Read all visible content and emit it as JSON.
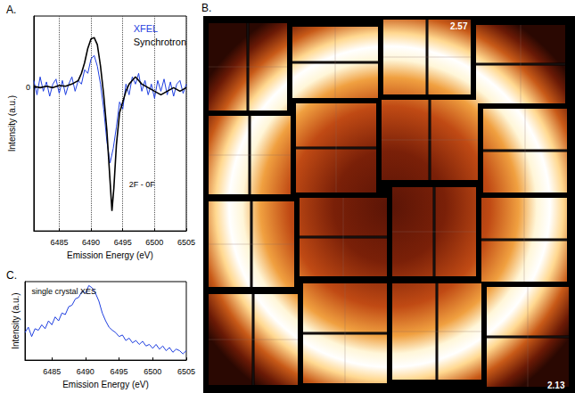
{
  "chart_data": [
    {
      "type": "line",
      "title": "A.",
      "x_label": "Emission Energy (eV)",
      "y_label": "Intensity (a.u.)",
      "xlim": [
        6481,
        6505
      ],
      "xticks": [
        6485,
        6490,
        6495,
        6500,
        6505
      ],
      "ylim": [
        -2,
        1
      ],
      "yticks": [
        0
      ],
      "grid": true,
      "legend": "upper right",
      "annotations": [
        {
          "text": "2F - 0F",
          "x": 6496,
          "y": -1.3
        }
      ],
      "series": [
        {
          "name": "XFEL",
          "color": "#1f3fe0",
          "x": [
            6481,
            6481.5,
            6482,
            6482.5,
            6483,
            6483.5,
            6484,
            6484.5,
            6485,
            6485.5,
            6486,
            6486.5,
            6487,
            6487.5,
            6488,
            6488.5,
            6489,
            6489.5,
            6490,
            6490.5,
            6491,
            6491.5,
            6492,
            6492.5,
            6493,
            6493.5,
            6494,
            6494.5,
            6495,
            6495.5,
            6496,
            6496.5,
            6497,
            6497.5,
            6498,
            6498.5,
            6499,
            6499.5,
            6500,
            6500.5,
            6501,
            6501.5,
            6502,
            6502.5,
            6503,
            6503.5,
            6504,
            6504.5,
            6505
          ],
          "values": [
            0.1,
            -0.1,
            0.15,
            -0.05,
            0.08,
            -0.12,
            0.05,
            0.12,
            -0.08,
            0.1,
            -0.1,
            0.05,
            0.15,
            -0.05,
            0.1,
            0.05,
            0.25,
            0.2,
            0.4,
            0.45,
            0.3,
            0.05,
            -0.3,
            -0.75,
            -1.05,
            -0.85,
            -0.55,
            -0.2,
            -0.3,
            0.05,
            -0.1,
            0.15,
            0.05,
            0.2,
            -0.05,
            0.1,
            -0.1,
            0.05,
            -0.15,
            0.1,
            -0.05,
            0.12,
            -0.1,
            0.08,
            -0.12,
            0.05,
            0.1,
            -0.08,
            0.05
          ]
        },
        {
          "name": "Synchrotron",
          "color": "#000000",
          "x": [
            6481,
            6482,
            6483,
            6484,
            6485,
            6486,
            6487,
            6488,
            6488.5,
            6489,
            6489.5,
            6490,
            6490.5,
            6491,
            6491.5,
            6492,
            6492.5,
            6493,
            6493.3,
            6493.6,
            6494,
            6494.5,
            6495,
            6495.5,
            6496,
            6496.5,
            6497,
            6497.5,
            6498,
            6499,
            6500,
            6501,
            6502,
            6503,
            6504,
            6505
          ],
          "values": [
            0.02,
            0.0,
            0.02,
            0.0,
            0.03,
            0.02,
            0.05,
            0.1,
            0.2,
            0.35,
            0.55,
            0.68,
            0.7,
            0.6,
            0.3,
            -0.1,
            -0.6,
            -1.3,
            -1.72,
            -1.4,
            -0.8,
            -0.35,
            -0.2,
            -0.05,
            0.05,
            0.1,
            0.15,
            0.1,
            0.05,
            0.0,
            -0.05,
            -0.1,
            -0.05,
            0.0,
            -0.05,
            0.0
          ]
        }
      ]
    },
    {
      "type": "line",
      "title": "C.",
      "x_label": "Emission Energy (eV)",
      "y_label": "Intensity (a.u.)",
      "xlim": [
        6481,
        6505
      ],
      "xticks": [
        6485,
        6490,
        6495,
        6500,
        6505
      ],
      "ylim": [
        0,
        1
      ],
      "yticks": [],
      "grid": false,
      "tick_labels": "x",
      "annotations": [
        {
          "text": "single crystal XES",
          "x": 6482,
          "y": 0.93
        }
      ],
      "series": [
        {
          "name": "single crystal XES",
          "color": "#1f3fe0",
          "x": [
            6481,
            6481.5,
            6482,
            6482.5,
            6483,
            6483.5,
            6484,
            6484.5,
            6485,
            6485.5,
            6486,
            6486.5,
            6487,
            6487.5,
            6488,
            6488.5,
            6489,
            6489.5,
            6490,
            6490.5,
            6491,
            6491.5,
            6492,
            6492.5,
            6493,
            6493.5,
            6494,
            6494.5,
            6495,
            6495.5,
            6496,
            6496.5,
            6497,
            6497.5,
            6498,
            6498.5,
            6499,
            6499.5,
            6500,
            6500.5,
            6501,
            6501.5,
            6502,
            6502.5,
            6503,
            6503.5,
            6504,
            6504.5,
            6505
          ],
          "values": [
            0.35,
            0.42,
            0.3,
            0.4,
            0.38,
            0.45,
            0.4,
            0.5,
            0.45,
            0.55,
            0.5,
            0.6,
            0.58,
            0.68,
            0.7,
            0.78,
            0.8,
            0.88,
            0.85,
            0.95,
            0.92,
            0.85,
            0.75,
            0.6,
            0.5,
            0.42,
            0.38,
            0.35,
            0.3,
            0.32,
            0.25,
            0.28,
            0.22,
            0.25,
            0.2,
            0.24,
            0.18,
            0.2,
            0.15,
            0.2,
            0.14,
            0.18,
            0.12,
            0.16,
            0.1,
            0.14,
            0.12,
            0.08,
            0.12
          ]
        }
      ]
    }
  ],
  "image": {
    "title": "B.",
    "type": "diffraction pattern",
    "labels": [
      "2.57",
      "2.13"
    ]
  }
}
